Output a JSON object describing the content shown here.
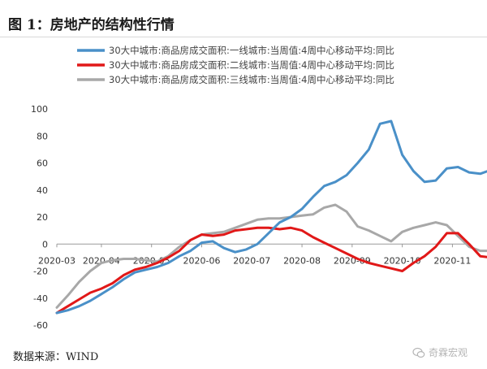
{
  "figure_title": "图 1：房地产的结构性行情",
  "source_note": "数据来源：WIND",
  "watermark_text": "奇霖宏观",
  "colors": {
    "tier1": "#4a90c8",
    "tier2": "#e11818",
    "tier3": "#a8a8a8",
    "axis": "#9a9a9a",
    "tick_text": "#333333"
  },
  "chart_data": {
    "type": "line",
    "title": "",
    "xlabel": "",
    "ylabel": "",
    "ylim": [
      -60,
      100
    ],
    "yticks": [
      100,
      80,
      60,
      40,
      20,
      0,
      -20,
      -40,
      -60
    ],
    "grid": false,
    "legend_position": "top",
    "x_unit": "week index",
    "x_range": [
      0,
      37
    ],
    "x_tick_labels": [
      {
        "label": "2020-03",
        "x": 0
      },
      {
        "label": "2020-04",
        "x": 4
      },
      {
        "label": "2020-05",
        "x": 8.5
      },
      {
        "label": "2020-06",
        "x": 13
      },
      {
        "label": "2020-07",
        "x": 17.5
      },
      {
        "label": "2020-08",
        "x": 22
      },
      {
        "label": "2020-09",
        "x": 26.5
      },
      {
        "label": "2020-10",
        "x": 31
      },
      {
        "label": "2020-11",
        "x": 35.5
      }
    ],
    "series": [
      {
        "name": "30大中城市:商品房成交面积:一线城市:当周值:4周中心移动平均:同比",
        "color": "#4a90c8",
        "values": [
          -51,
          -49,
          -46,
          -42,
          -37,
          -32,
          -26,
          -21,
          -19,
          -17,
          -14,
          -9,
          -5,
          1,
          2,
          -3,
          -6,
          -4,
          0,
          8,
          16,
          20,
          26,
          35,
          43,
          46,
          51,
          60,
          70,
          89,
          91,
          66,
          54,
          46,
          47,
          56,
          57,
          53,
          52,
          55
        ]
      },
      {
        "name": "30大中城市:商品房成交面积:二线城市:当周值:4周中心移动平均:同比",
        "color": "#e11818",
        "values": [
          -51,
          -46,
          -41,
          -36,
          -33,
          -29,
          -23,
          -19,
          -17,
          -14,
          -10,
          -5,
          3,
          7,
          6,
          7,
          10,
          11,
          12,
          12,
          11,
          12,
          10,
          5,
          1,
          -3,
          -7,
          -11,
          -14,
          -16,
          -18,
          -20,
          -14,
          -9,
          -2,
          8,
          8,
          0,
          -9,
          -10
        ]
      },
      {
        "name": "30大中城市:商品房成交面积:三线城市:当周值:4周中心移动平均:同比",
        "color": "#a8a8a8",
        "values": [
          -47,
          -38,
          -28,
          -20,
          -14,
          -12,
          -11,
          -11,
          -12,
          -13,
          -9,
          -2,
          3,
          7,
          8,
          9,
          12,
          15,
          18,
          19,
          19,
          20,
          21,
          22,
          27,
          29,
          24,
          13,
          10,
          6,
          2,
          9,
          12,
          14,
          16,
          14,
          6,
          -2,
          -5,
          -5
        ]
      }
    ]
  }
}
